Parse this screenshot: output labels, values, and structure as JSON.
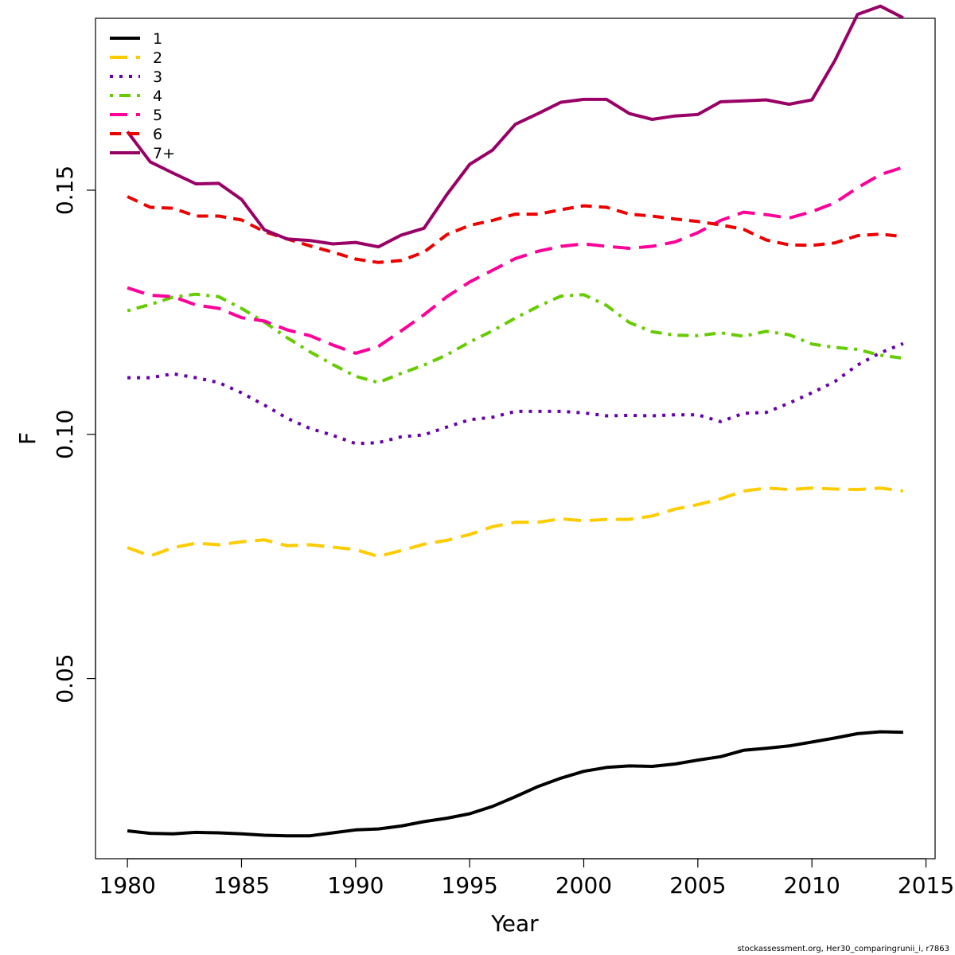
{
  "chart_data": {
    "type": "line",
    "xlabel": "Year",
    "ylabel": "F",
    "xlim": [
      1978.6,
      2015.4
    ],
    "ylim": [
      0.0131,
      0.1852
    ],
    "x_ticks": [
      1980,
      1985,
      1990,
      1995,
      2000,
      2005,
      2010,
      2015
    ],
    "x_tick_labels": [
      "1980",
      "1985",
      "1990",
      "1995",
      "2000",
      "2005",
      "2010",
      "2015"
    ],
    "y_ticks": [
      0.05,
      0.1,
      0.15
    ],
    "y_tick_labels": [
      "0.05",
      "0.10",
      "0.15"
    ],
    "grid": false,
    "legend_position": "top-left",
    "x": [
      1980,
      1981,
      1982,
      1983,
      1984,
      1985,
      1986,
      1987,
      1988,
      1989,
      1990,
      1991,
      1992,
      1993,
      1994,
      1995,
      1996,
      1997,
      1998,
      1999,
      2000,
      2001,
      2002,
      2003,
      2004,
      2005,
      2006,
      2007,
      2008,
      2009,
      2010,
      2011,
      2012,
      2013,
      2014
    ],
    "series": [
      {
        "name": "1",
        "color": "#000000",
        "dash": "solid",
        "values": [
          0.0188,
          0.0183,
          0.0182,
          0.0185,
          0.0184,
          0.0182,
          0.0179,
          0.0178,
          0.0178,
          0.0184,
          0.019,
          0.0192,
          0.0198,
          0.0207,
          0.0214,
          0.0223,
          0.0238,
          0.0258,
          0.0279,
          0.0296,
          0.031,
          0.0318,
          0.0321,
          0.032,
          0.0325,
          0.0333,
          0.034,
          0.0353,
          0.0357,
          0.0362,
          0.037,
          0.0378,
          0.0387,
          0.0391,
          0.039
        ]
      },
      {
        "name": "2",
        "color": "#ffcc00",
        "dash": "longdash",
        "values": [
          0.0768,
          0.0751,
          0.0768,
          0.0777,
          0.0774,
          0.078,
          0.0784,
          0.0772,
          0.0774,
          0.0769,
          0.0764,
          0.075,
          0.0762,
          0.0775,
          0.0783,
          0.0795,
          0.0811,
          0.082,
          0.082,
          0.0827,
          0.0823,
          0.0826,
          0.0826,
          0.0833,
          0.0847,
          0.0856,
          0.0868,
          0.0884,
          0.089,
          0.0887,
          0.089,
          0.0888,
          0.0887,
          0.089,
          0.0884
        ]
      },
      {
        "name": "3",
        "color": "#6600aa",
        "dash": "dotted",
        "values": [
          0.1116,
          0.1116,
          0.1124,
          0.1116,
          0.1106,
          0.1085,
          0.106,
          0.1033,
          0.1012,
          0.0998,
          0.0981,
          0.0983,
          0.0995,
          0.0999,
          0.1015,
          0.103,
          0.1035,
          0.1047,
          0.1047,
          0.1047,
          0.1044,
          0.1038,
          0.1039,
          0.1038,
          0.104,
          0.104,
          0.1026,
          0.1043,
          0.1045,
          0.1064,
          0.1085,
          0.1108,
          0.1142,
          0.1167,
          0.1186
        ]
      },
      {
        "name": "4",
        "color": "#66cc00",
        "dash": "dotdash",
        "values": [
          0.1253,
          0.1266,
          0.1281,
          0.1287,
          0.1282,
          0.1258,
          0.123,
          0.1198,
          0.1169,
          0.1143,
          0.1119,
          0.1106,
          0.1125,
          0.1142,
          0.1163,
          0.1189,
          0.1212,
          0.1238,
          0.1262,
          0.1283,
          0.1286,
          0.1264,
          0.1229,
          0.121,
          0.1203,
          0.1202,
          0.1208,
          0.1201,
          0.1211,
          0.1204,
          0.1185,
          0.1178,
          0.1174,
          0.1162,
          0.1156
        ]
      },
      {
        "name": "5",
        "color": "#ff0099",
        "dash": "longdash",
        "values": [
          0.13,
          0.1285,
          0.1282,
          0.1265,
          0.1258,
          0.1239,
          0.1232,
          0.1214,
          0.1202,
          0.1183,
          0.1166,
          0.118,
          0.1212,
          0.1245,
          0.1282,
          0.1312,
          0.1336,
          0.136,
          0.1375,
          0.1385,
          0.139,
          0.1385,
          0.1381,
          0.1385,
          0.1394,
          0.1413,
          0.1438,
          0.1455,
          0.145,
          0.1443,
          0.1456,
          0.1474,
          0.1505,
          0.1532,
          0.1547
        ]
      },
      {
        "name": "6",
        "color": "#ee0000",
        "dash": "dashed",
        "values": [
          0.1487,
          0.1465,
          0.1463,
          0.1447,
          0.1447,
          0.1439,
          0.1415,
          0.14,
          0.1386,
          0.1373,
          0.1359,
          0.1352,
          0.1356,
          0.1373,
          0.1409,
          0.1428,
          0.1438,
          0.1451,
          0.1451,
          0.146,
          0.1468,
          0.1465,
          0.1451,
          0.1447,
          0.1441,
          0.1436,
          0.1429,
          0.142,
          0.1398,
          0.1388,
          0.1387,
          0.1392,
          0.1407,
          0.141,
          0.1405
        ]
      },
      {
        "name": "7+",
        "color": "#990066",
        "dash": "solid",
        "values": [
          0.162,
          0.1558,
          0.1535,
          0.1513,
          0.1514,
          0.1481,
          0.1419,
          0.14,
          0.1397,
          0.139,
          0.1393,
          0.1384,
          0.1408,
          0.1422,
          0.1491,
          0.1553,
          0.1582,
          0.1635,
          0.1657,
          0.168,
          0.1686,
          0.1686,
          0.1657,
          0.1645,
          0.1652,
          0.1655,
          0.1681,
          0.1683,
          0.1685,
          0.1676,
          0.1685,
          0.1765,
          0.186,
          0.1877,
          0.1853
        ]
      }
    ]
  },
  "footer_text": "stockassessment.org, Her30_comparingrunii_i, r7863"
}
